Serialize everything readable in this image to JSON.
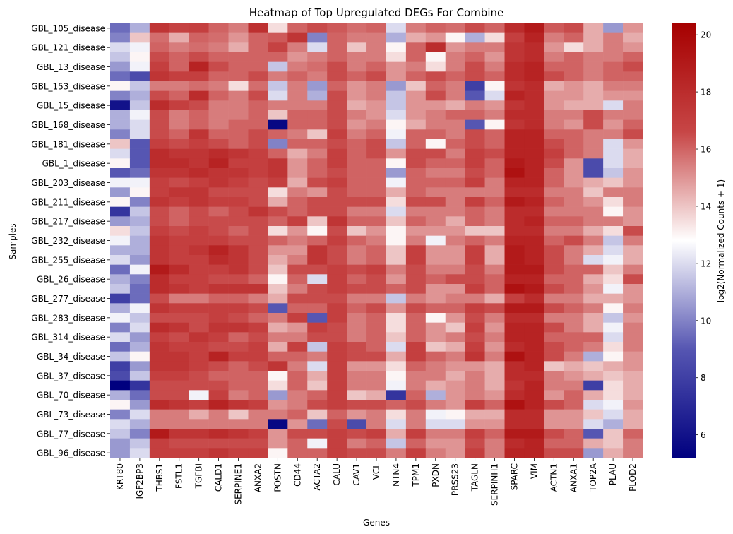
{
  "chart_data": {
    "type": "heatmap",
    "title": "Heatmap of Top Upregulated DEGs For Combine",
    "xlabel": "Genes",
    "ylabel": "Samples",
    "colorbar_label": "log2(Normalized Counts + 1)",
    "colorbar_range": [
      5.2,
      20.4
    ],
    "colorbar_ticks": [
      6,
      8,
      10,
      12,
      14,
      16,
      18,
      20
    ],
    "colormap": "seismic-like diverging (navy → blue → white → red → dark red)",
    "colormap_stops": [
      "#00007f",
      "#5656b2",
      "#ffffff",
      "#c74646",
      "#a60000"
    ],
    "genes": [
      "KRT80",
      "IGF2BP3",
      "THBS1",
      "FSTL1",
      "TGFBI",
      "CALD1",
      "SERPINE1",
      "ANXA2",
      "POSTN",
      "CD44",
      "ACTA2",
      "CALU",
      "CAV1",
      "VCL",
      "NTN4",
      "TPM1",
      "PXDN",
      "PRSS23",
      "TAGLN",
      "SERPINH1",
      "SPARC",
      "VIM",
      "ACTN1",
      "ANXA1",
      "TOP2A",
      "PLAU",
      "PLOD2"
    ],
    "row_tick_labels": [
      "GBL_105_disease",
      "GBL_121_disease",
      "GBL_13_disease",
      "GBL_153_disease",
      "GBL_15_disease",
      "GBL_168_disease",
      "GBL_181_disease",
      "GBL_1_disease",
      "GBL_203_disease",
      "GBL_211_disease",
      "GBL_217_disease",
      "GBL_232_disease",
      "GBL_255_disease",
      "GBL_26_disease",
      "GBL_277_disease",
      "GBL_283_disease",
      "GBL_314_disease",
      "GBL_34_disease",
      "GBL_37_disease",
      "GBL_70_disease",
      "GBL_73_disease",
      "GBL_77_disease",
      "GBL_96_disease"
    ],
    "n_rows": 45,
    "values": [
      [
        9.5,
        11.0,
        17.5,
        16.8,
        17.0,
        16.0,
        15.5,
        17.8,
        13.5,
        16.0,
        16.5,
        16.2,
        15.8,
        16.0,
        12.0,
        15.5,
        16.0,
        15.8,
        16.5,
        16.0,
        18.0,
        19.0,
        16.2,
        16.5,
        14.5,
        10.5,
        15.0
      ],
      [
        10.0,
        14.0,
        15.8,
        14.5,
        16.0,
        15.8,
        15.0,
        16.0,
        16.2,
        17.5,
        10.0,
        16.0,
        15.5,
        15.5,
        11.0,
        14.5,
        15.0,
        13.0,
        11.0,
        13.5,
        17.0,
        18.5,
        15.5,
        16.0,
        14.5,
        15.5,
        14.5
      ],
      [
        12.0,
        12.5,
        16.0,
        15.5,
        15.8,
        15.5,
        14.5,
        16.0,
        16.8,
        15.5,
        12.0,
        16.0,
        14.0,
        15.5,
        13.0,
        16.0,
        18.0,
        15.0,
        15.5,
        15.5,
        17.5,
        18.0,
        15.0,
        13.5,
        14.5,
        15.5,
        15.0
      ],
      [
        11.5,
        13.0,
        16.5,
        16.0,
        16.5,
        16.0,
        16.0,
        16.0,
        16.0,
        15.0,
        15.5,
        16.0,
        15.5,
        15.5,
        13.5,
        16.0,
        13.0,
        15.5,
        16.0,
        15.0,
        17.5,
        18.0,
        15.5,
        16.0,
        15.5,
        15.5,
        16.0
      ],
      [
        10.5,
        12.5,
        17.0,
        16.0,
        18.5,
        16.5,
        16.0,
        16.0,
        11.5,
        15.5,
        15.8,
        16.5,
        15.5,
        16.0,
        15.0,
        15.5,
        13.5,
        15.5,
        16.5,
        15.5,
        18.0,
        18.5,
        16.0,
        16.0,
        15.5,
        16.0,
        16.5
      ],
      [
        9.5,
        8.5,
        17.5,
        17.0,
        17.0,
        16.0,
        16.0,
        16.5,
        15.5,
        16.0,
        15.5,
        16.5,
        16.0,
        16.5,
        15.0,
        16.0,
        16.5,
        16.0,
        16.5,
        16.0,
        18.0,
        18.5,
        16.5,
        16.0,
        15.5,
        16.0,
        16.0
      ],
      [
        13.0,
        11.5,
        15.5,
        15.5,
        15.8,
        15.5,
        13.5,
        15.8,
        11.5,
        15.5,
        10.5,
        16.0,
        15.0,
        15.5,
        10.5,
        14.0,
        16.0,
        15.5,
        8.0,
        13.0,
        17.5,
        18.0,
        14.5,
        15.0,
        14.5,
        15.5,
        15.5
      ],
      [
        10.0,
        11.0,
        16.5,
        16.0,
        18.0,
        16.0,
        15.5,
        16.5,
        12.0,
        15.5,
        11.0,
        16.5,
        15.0,
        15.5,
        11.5,
        15.0,
        16.5,
        15.5,
        9.0,
        12.0,
        18.5,
        18.0,
        15.0,
        15.0,
        14.5,
        15.0,
        15.0
      ],
      [
        6.0,
        11.5,
        18.0,
        17.0,
        16.5,
        15.5,
        15.5,
        16.0,
        15.5,
        15.5,
        15.5,
        16.5,
        14.5,
        15.0,
        11.5,
        15.0,
        15.0,
        14.5,
        15.5,
        15.0,
        17.5,
        18.0,
        15.0,
        14.5,
        14.5,
        12.0,
        15.5
      ],
      [
        11.0,
        12.5,
        16.5,
        15.5,
        16.0,
        15.5,
        15.5,
        16.0,
        14.0,
        16.0,
        16.0,
        16.5,
        15.5,
        15.0,
        12.0,
        15.0,
        15.5,
        16.0,
        16.0,
        15.5,
        18.0,
        18.0,
        15.5,
        15.5,
        16.5,
        15.5,
        15.5
      ],
      [
        11.0,
        12.0,
        16.5,
        15.5,
        16.0,
        15.5,
        16.0,
        16.0,
        5.5,
        16.0,
        16.0,
        16.5,
        15.0,
        15.5,
        13.0,
        14.5,
        15.5,
        15.5,
        9.0,
        13.0,
        17.5,
        18.0,
        15.5,
        15.0,
        16.5,
        15.0,
        16.0
      ],
      [
        10.0,
        12.0,
        16.5,
        16.0,
        17.5,
        16.0,
        16.0,
        16.5,
        16.0,
        15.5,
        14.0,
        17.0,
        15.5,
        16.0,
        12.5,
        16.0,
        16.0,
        15.5,
        16.5,
        16.0,
        18.5,
        18.5,
        16.0,
        16.0,
        15.5,
        15.5,
        16.5
      ],
      [
        14.0,
        9.0,
        17.0,
        16.5,
        17.0,
        16.5,
        16.0,
        16.5,
        10.0,
        16.0,
        16.0,
        16.5,
        16.0,
        16.5,
        11.5,
        16.0,
        13.0,
        16.0,
        16.5,
        16.0,
        18.5,
        18.5,
        16.5,
        16.0,
        15.5,
        12.0,
        15.0
      ],
      [
        12.0,
        9.0,
        18.0,
        17.5,
        17.5,
        18.0,
        17.5,
        17.0,
        16.0,
        14.5,
        15.5,
        17.0,
        16.0,
        16.5,
        15.0,
        16.5,
        16.5,
        15.5,
        17.0,
        16.5,
        18.5,
        18.5,
        17.0,
        16.0,
        15.5,
        12.0,
        14.5
      ],
      [
        13.0,
        9.0,
        18.0,
        18.0,
        17.5,
        18.5,
        17.0,
        17.0,
        17.5,
        15.0,
        16.0,
        17.0,
        16.0,
        16.0,
        13.0,
        16.5,
        16.0,
        16.0,
        17.0,
        16.0,
        19.0,
        18.5,
        16.5,
        15.0,
        8.5,
        12.0,
        14.5
      ],
      [
        9.0,
        9.5,
        17.5,
        17.5,
        18.0,
        17.5,
        17.5,
        17.0,
        17.5,
        15.0,
        16.0,
        16.5,
        16.0,
        16.0,
        10.5,
        16.0,
        15.5,
        15.5,
        16.5,
        16.0,
        19.5,
        18.5,
        16.0,
        15.0,
        8.5,
        11.5,
        15.0
      ],
      [
        12.5,
        12.5,
        17.0,
        16.5,
        17.0,
        17.5,
        17.0,
        16.5,
        17.0,
        14.5,
        16.5,
        17.0,
        16.0,
        16.0,
        12.5,
        16.0,
        16.0,
        16.0,
        17.0,
        15.5,
        18.5,
        18.5,
        16.0,
        15.0,
        14.5,
        14.0,
        15.0
      ],
      [
        10.5,
        13.0,
        17.0,
        17.5,
        17.5,
        16.5,
        16.5,
        16.5,
        13.5,
        15.5,
        15.0,
        16.5,
        16.0,
        16.0,
        14.5,
        16.0,
        15.5,
        15.5,
        15.5,
        15.5,
        18.0,
        18.0,
        15.5,
        15.5,
        14.0,
        15.5,
        15.5
      ],
      [
        13.0,
        10.0,
        17.5,
        17.0,
        17.5,
        17.0,
        17.0,
        16.5,
        14.5,
        16.0,
        16.5,
        16.5,
        16.5,
        16.5,
        13.5,
        16.5,
        16.5,
        15.5,
        17.0,
        16.0,
        19.0,
        18.5,
        16.0,
        15.5,
        15.0,
        13.5,
        15.5
      ],
      [
        7.5,
        11.5,
        16.5,
        16.0,
        16.5,
        16.0,
        16.5,
        17.5,
        16.5,
        16.0,
        16.5,
        16.5,
        15.5,
        15.5,
        12.0,
        15.5,
        15.5,
        15.5,
        16.0,
        15.5,
        18.0,
        18.0,
        15.5,
        15.5,
        15.5,
        13.0,
        15.0
      ],
      [
        10.5,
        11.0,
        16.5,
        16.0,
        16.5,
        16.5,
        16.5,
        16.5,
        16.0,
        17.0,
        14.0,
        17.5,
        16.0,
        16.0,
        14.0,
        16.0,
        15.5,
        14.5,
        16.0,
        15.5,
        18.0,
        18.5,
        16.0,
        16.0,
        15.5,
        15.5,
        15.0
      ],
      [
        13.5,
        11.5,
        17.0,
        16.5,
        17.0,
        16.5,
        16.0,
        16.5,
        13.5,
        15.0,
        13.0,
        16.5,
        14.0,
        15.0,
        13.0,
        15.0,
        15.0,
        15.0,
        14.0,
        14.0,
        18.0,
        18.0,
        15.5,
        15.5,
        14.5,
        13.5,
        16.5
      ],
      [
        12.5,
        11.0,
        17.5,
        17.0,
        17.0,
        17.0,
        16.5,
        16.5,
        16.0,
        15.5,
        16.0,
        17.0,
        16.0,
        15.5,
        13.0,
        15.5,
        12.5,
        15.5,
        16.0,
        15.5,
        18.5,
        18.5,
        16.0,
        16.5,
        15.5,
        11.5,
        15.5
      ],
      [
        11.0,
        11.0,
        17.5,
        17.0,
        17.5,
        18.5,
        17.5,
        16.5,
        15.0,
        15.0,
        17.5,
        16.5,
        15.5,
        16.0,
        14.0,
        17.0,
        15.0,
        15.0,
        17.0,
        14.5,
        19.0,
        18.5,
        16.5,
        15.5,
        14.5,
        12.0,
        14.5
      ],
      [
        12.0,
        10.5,
        17.5,
        17.0,
        17.0,
        18.0,
        17.5,
        16.5,
        14.5,
        15.5,
        17.5,
        16.5,
        15.5,
        16.0,
        14.0,
        17.0,
        15.0,
        15.0,
        17.0,
        14.5,
        19.0,
        18.5,
        16.5,
        15.5,
        12.0,
        12.5,
        14.5
      ],
      [
        9.5,
        12.5,
        19.0,
        18.0,
        17.0,
        17.0,
        17.5,
        16.5,
        14.0,
        16.5,
        16.5,
        17.0,
        16.5,
        17.0,
        15.5,
        16.5,
        15.5,
        15.5,
        16.5,
        15.5,
        19.0,
        19.0,
        16.5,
        16.0,
        16.0,
        14.0,
        15.5
      ],
      [
        11.0,
        10.0,
        18.0,
        17.0,
        17.0,
        16.5,
        16.5,
        16.0,
        13.0,
        16.0,
        12.0,
        17.0,
        16.0,
        16.5,
        15.0,
        16.5,
        16.0,
        16.5,
        16.5,
        16.0,
        18.5,
        18.5,
        16.0,
        16.0,
        14.5,
        13.5,
        16.5
      ],
      [
        11.5,
        9.5,
        18.0,
        17.5,
        17.0,
        17.5,
        17.5,
        17.5,
        14.0,
        15.5,
        16.5,
        17.0,
        16.5,
        16.5,
        16.0,
        16.5,
        15.0,
        15.0,
        17.0,
        16.0,
        19.5,
        19.0,
        16.5,
        16.0,
        15.0,
        12.5,
        15.0
      ],
      [
        8.0,
        9.5,
        16.5,
        15.5,
        15.5,
        16.0,
        16.0,
        15.5,
        14.5,
        16.5,
        16.5,
        16.5,
        15.5,
        15.5,
        11.5,
        15.5,
        15.0,
        15.5,
        15.5,
        14.5,
        17.0,
        18.0,
        15.5,
        15.5,
        14.5,
        14.5,
        15.0
      ],
      [
        11.0,
        12.5,
        17.5,
        17.0,
        17.0,
        17.0,
        17.0,
        16.5,
        9.0,
        16.0,
        16.0,
        17.0,
        16.0,
        16.5,
        15.0,
        16.5,
        16.0,
        16.0,
        17.0,
        16.5,
        19.0,
        19.0,
        16.5,
        16.0,
        15.5,
        13.0,
        15.5
      ],
      [
        12.5,
        11.5,
        16.5,
        16.5,
        16.5,
        17.0,
        16.5,
        16.0,
        15.5,
        17.0,
        9.0,
        17.0,
        15.5,
        16.0,
        13.5,
        16.0,
        13.0,
        15.0,
        16.5,
        15.5,
        18.0,
        18.0,
        15.5,
        15.5,
        14.5,
        11.5,
        15.0
      ],
      [
        10.0,
        12.0,
        18.0,
        17.5,
        16.5,
        17.5,
        17.5,
        17.0,
        14.5,
        15.0,
        17.0,
        16.5,
        15.5,
        16.0,
        13.5,
        16.0,
        15.0,
        14.0,
        17.0,
        15.0,
        18.5,
        18.5,
        16.5,
        15.5,
        14.5,
        12.5,
        15.5
      ],
      [
        12.0,
        10.5,
        17.0,
        16.5,
        17.5,
        17.0,
        16.0,
        16.5,
        15.5,
        15.5,
        16.5,
        16.5,
        15.5,
        16.0,
        14.0,
        16.0,
        15.0,
        15.5,
        16.5,
        15.5,
        18.5,
        18.5,
        16.0,
        16.0,
        16.0,
        12.0,
        15.5
      ],
      [
        9.5,
        11.0,
        17.5,
        17.0,
        17.0,
        16.5,
        16.5,
        17.0,
        14.5,
        17.0,
        11.5,
        17.0,
        16.5,
        16.0,
        12.0,
        17.0,
        14.0,
        14.5,
        17.0,
        15.0,
        18.0,
        18.5,
        16.5,
        16.0,
        15.5,
        13.5,
        15.5
      ],
      [
        11.5,
        13.0,
        17.5,
        17.5,
        17.0,
        18.5,
        17.0,
        17.0,
        16.0,
        16.0,
        15.5,
        17.0,
        16.5,
        16.5,
        14.5,
        17.0,
        16.0,
        15.5,
        17.5,
        15.5,
        19.5,
        18.5,
        16.5,
        15.5,
        11.0,
        13.0,
        15.0
      ],
      [
        8.0,
        10.5,
        17.5,
        17.5,
        17.0,
        16.5,
        16.0,
        16.5,
        17.5,
        15.5,
        12.0,
        17.0,
        15.0,
        15.0,
        13.5,
        16.0,
        15.5,
        15.0,
        15.0,
        14.5,
        18.0,
        18.5,
        14.0,
        14.5,
        14.0,
        14.5,
        15.0
      ],
      [
        8.5,
        11.5,
        17.0,
        17.0,
        16.5,
        16.0,
        16.0,
        16.0,
        13.0,
        16.0,
        14.5,
        17.0,
        15.5,
        15.5,
        13.0,
        15.5,
        15.5,
        14.5,
        15.5,
        14.5,
        18.0,
        18.0,
        15.5,
        15.0,
        14.5,
        14.0,
        14.5
      ],
      [
        5.2,
        7.5,
        16.5,
        16.5,
        16.5,
        16.5,
        16.0,
        16.0,
        13.5,
        16.0,
        14.0,
        17.0,
        15.5,
        15.5,
        12.5,
        15.5,
        14.5,
        15.0,
        15.5,
        14.5,
        17.5,
        18.5,
        15.5,
        15.5,
        8.0,
        13.5,
        14.5
      ],
      [
        11.0,
        9.5,
        16.5,
        16.5,
        12.5,
        17.0,
        15.5,
        16.0,
        10.5,
        15.5,
        16.0,
        17.0,
        14.0,
        14.5,
        7.5,
        16.0,
        11.0,
        15.0,
        15.5,
        15.0,
        18.0,
        18.5,
        15.0,
        16.0,
        14.5,
        13.5,
        14.5
      ],
      [
        13.0,
        10.5,
        18.0,
        17.5,
        17.0,
        18.5,
        17.5,
        17.0,
        15.0,
        15.5,
        16.5,
        17.0,
        16.5,
        16.5,
        16.0,
        16.5,
        15.5,
        15.0,
        17.0,
        16.0,
        19.5,
        18.5,
        16.5,
        16.0,
        12.0,
        12.5,
        15.0
      ],
      [
        10.0,
        12.0,
        15.5,
        15.5,
        14.5,
        15.5,
        14.0,
        15.5,
        15.5,
        16.0,
        14.0,
        16.0,
        15.0,
        15.5,
        13.5,
        15.5,
        12.5,
        13.0,
        14.5,
        14.5,
        18.0,
        18.0,
        15.0,
        15.0,
        14.0,
        12.0,
        14.5
      ],
      [
        12.0,
        11.0,
        15.5,
        15.5,
        15.5,
        15.5,
        15.5,
        15.5,
        5.5,
        15.0,
        9.5,
        16.5,
        8.5,
        15.5,
        12.0,
        15.5,
        12.0,
        12.0,
        15.0,
        15.0,
        18.0,
        18.0,
        15.0,
        15.0,
        12.0,
        11.0,
        14.5
      ],
      [
        11.5,
        10.0,
        19.0,
        17.5,
        17.5,
        18.0,
        17.5,
        17.0,
        15.0,
        16.5,
        16.5,
        17.0,
        16.5,
        17.0,
        14.5,
        17.0,
        15.5,
        15.5,
        17.0,
        16.0,
        19.0,
        19.0,
        16.5,
        16.0,
        9.0,
        14.0,
        16.0
      ],
      [
        10.5,
        11.5,
        17.0,
        16.5,
        16.5,
        16.5,
        16.5,
        16.5,
        15.0,
        16.0,
        12.5,
        17.0,
        15.5,
        16.0,
        11.5,
        16.0,
        15.0,
        15.0,
        16.5,
        15.5,
        18.0,
        18.5,
        16.0,
        16.0,
        14.5,
        14.0,
        15.5
      ],
      [
        10.5,
        12.0,
        17.0,
        17.0,
        17.0,
        17.5,
        17.0,
        17.0,
        13.0,
        16.0,
        16.0,
        17.0,
        16.5,
        16.5,
        15.5,
        17.0,
        15.5,
        15.0,
        17.0,
        15.5,
        18.5,
        18.5,
        16.5,
        16.5,
        10.5,
        14.5,
        15.5
      ]
    ]
  }
}
